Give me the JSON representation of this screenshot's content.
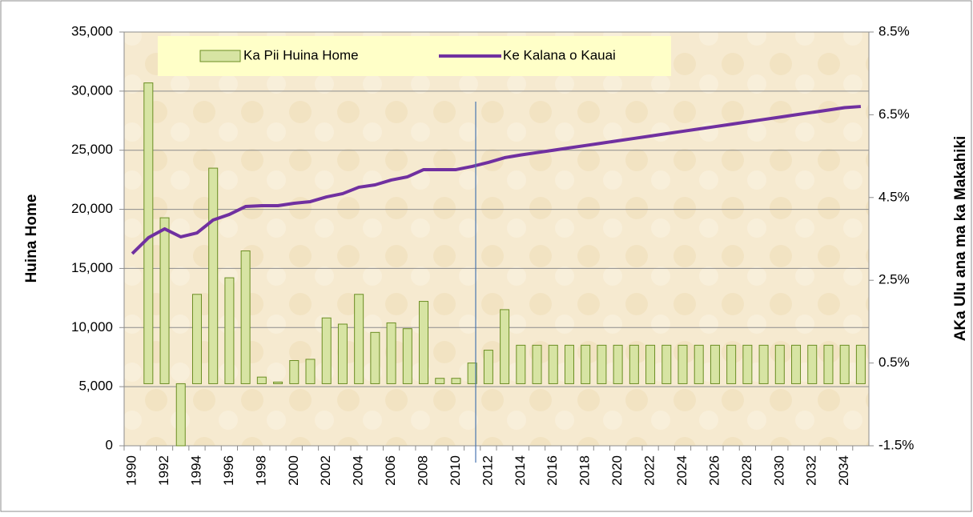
{
  "chart_data": {
    "type": "bar_line",
    "y_axis_label": "Huina Home",
    "y2_axis_label": "AKa Ulu ana ma ka Makahiki",
    "categories": [
      "1990",
      null,
      "1992",
      null,
      "1994",
      null,
      "1996",
      null,
      "1998",
      null,
      "2000",
      null,
      "2002",
      null,
      "2004",
      null,
      "2006",
      null,
      "2008",
      null,
      "2010",
      null,
      "2012",
      null,
      "2014",
      null,
      "2016",
      null,
      "2018",
      null,
      "2020",
      null,
      "2022",
      null,
      "2024",
      null,
      "2026",
      null,
      "2028",
      null,
      "2030",
      null,
      "2032",
      null,
      "2034",
      null
    ],
    "series": [
      {
        "name": "Ka Pii Huina Home",
        "kind": "bar",
        "axis": "y2",
        "color": "#d7e4a3",
        "values": [
          null,
          7.27,
          4.01,
          -1.5,
          2.16,
          5.21,
          2.56,
          3.21,
          0.16,
          0.04,
          0.56,
          0.59,
          1.59,
          1.44,
          2.16,
          1.24,
          1.47,
          1.33,
          1.99,
          0.13,
          0.13,
          0.5,
          0.81,
          1.79,
          0.93,
          0.93,
          0.93,
          0.93,
          0.93,
          0.93,
          0.93,
          0.93,
          0.93,
          0.93,
          0.93,
          0.93,
          0.93,
          0.93,
          0.93,
          0.93,
          0.93,
          0.93,
          0.93,
          0.93,
          0.93,
          0.93
        ]
      },
      {
        "name": "Ke Kalana o Kauai",
        "kind": "line",
        "color": "#7030a0",
        "values": [
          16250,
          17600,
          18350,
          17670,
          18000,
          19100,
          19570,
          20240,
          20310,
          20310,
          20510,
          20650,
          21050,
          21330,
          21870,
          22070,
          22480,
          22750,
          23360,
          23360,
          23360,
          23630,
          23970,
          24370,
          24600,
          24800,
          25000,
          25200,
          25400,
          25600,
          25800,
          26000,
          26200,
          26400,
          26600,
          26800,
          27000,
          27200,
          27400,
          27600,
          27800,
          28000,
          28200,
          28400,
          28600,
          28700
        ]
      }
    ],
    "ylim": [
      0,
      35000
    ],
    "yticks": [
      0,
      {
        "value": 5000,
        "label": "5,000"
      },
      {
        "value": 10000,
        "label": "10,000"
      },
      {
        "value": 15000,
        "label": "15,000"
      },
      {
        "value": 20000,
        "label": "20,000"
      },
      {
        "value": 25000,
        "label": "25,000"
      },
      {
        "value": 30000,
        "label": "30,000"
      },
      {
        "value": 35000,
        "label": "35,000"
      }
    ],
    "y2lim": [
      -1.5,
      8.5
    ],
    "y2ticks": [
      {
        "value": -1.5,
        "label": "-1.5%"
      },
      {
        "value": 0.5,
        "label": "0.5%"
      },
      {
        "value": 2.5,
        "label": "2.5%"
      },
      {
        "value": 4.5,
        "label": "4.5%"
      },
      {
        "value": 6.5,
        "label": "6.5%"
      },
      {
        "value": 8.5,
        "label": "8.5%"
      }
    ],
    "grid": true
  }
}
